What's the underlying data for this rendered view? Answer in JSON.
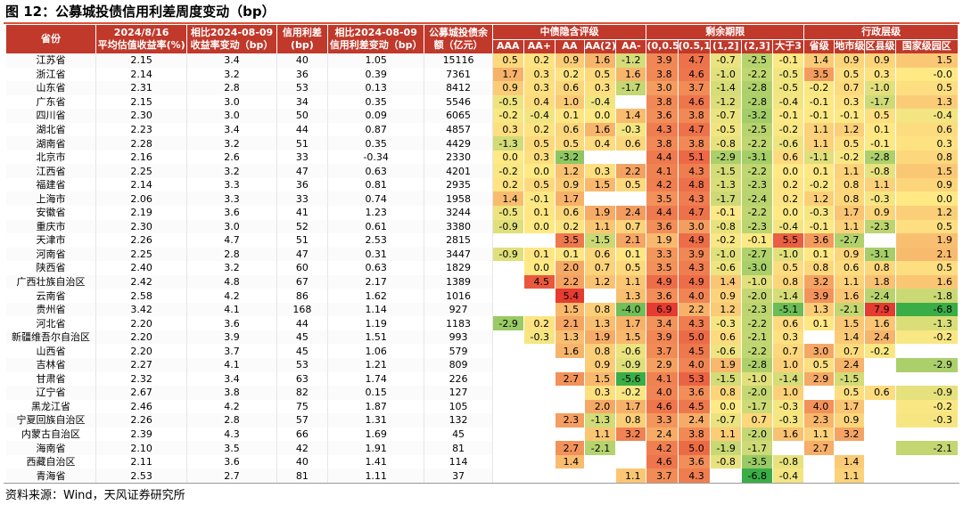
{
  "title": "图 12：公募城投债信用利差周度变动（bp）",
  "source": "资料来源：Wind，天风证券研究所",
  "headers": {
    "province": "省份",
    "yield": [
      "2024/8/16",
      "平均估值收益率(%)"
    ],
    "yield_chg": [
      "相比2024-08-09",
      "收益率变动（bp）"
    ],
    "spread": [
      "信用利差",
      "(bp)"
    ],
    "spread_chg": [
      "相比2024-08-09",
      "信用利差变动（bp）"
    ],
    "balance": [
      "公募城投债余",
      "额（亿元）"
    ],
    "group_rating": "中债隐含评级",
    "group_term": "剩余期限",
    "group_admin": "行政层级",
    "rating_cols": [
      "AAA",
      "AA+",
      "AA",
      "AA(2)",
      "AA-"
    ],
    "term_cols": [
      "(0,0.5]",
      "(0.5,1]",
      "(1,2]",
      "(2,3]",
      "大于3"
    ],
    "admin_cols": [
      "省级",
      "地市级",
      "区县级",
      "国家级园区"
    ]
  },
  "rows": [
    {
      "p": "江苏省",
      "y": "2.15",
      "yc": "3.4",
      "s": "40",
      "sc": "1.05",
      "b": "15116",
      "r": [
        "0.5",
        "0.2",
        "0.9",
        "1.6",
        "-1.2"
      ],
      "t": [
        "3.9",
        "4.7",
        "-0.7",
        "-2.5",
        "-0.1"
      ],
      "a": [
        "1.4",
        "0.9",
        "0.9",
        "1.5"
      ]
    },
    {
      "p": "浙江省",
      "y": "2.14",
      "yc": "3.2",
      "s": "36",
      "sc": "0.39",
      "b": "7361",
      "r": [
        "1.7",
        "0.3",
        "0.2",
        "0.5",
        "1.6"
      ],
      "t": [
        "3.8",
        "4.6",
        "-1.0",
        "-2.2",
        "-0.5"
      ],
      "a": [
        "3.5",
        "0.5",
        "0.3",
        "-0.0"
      ]
    },
    {
      "p": "山东省",
      "y": "2.31",
      "yc": "2.8",
      "s": "53",
      "sc": "0.13",
      "b": "8412",
      "r": [
        "0.9",
        "0.3",
        "0.6",
        "0.3",
        "-1.7"
      ],
      "t": [
        "3.0",
        "3.7",
        "-1.4",
        "-2.8",
        "-0.5"
      ],
      "a": [
        "-0.2",
        "0.7",
        "-1.0",
        "0.5"
      ]
    },
    {
      "p": "广东省",
      "y": "2.15",
      "yc": "3.0",
      "s": "34",
      "sc": "0.35",
      "b": "5546",
      "r": [
        "-0.5",
        "0.4",
        "1.0",
        "-0.4",
        ""
      ],
      "t": [
        "3.8",
        "4.6",
        "-1.2",
        "-2.8",
        "-0.4"
      ],
      "a": [
        "-0.1",
        "0.3",
        "-1.7",
        "1.3"
      ]
    },
    {
      "p": "四川省",
      "y": "2.30",
      "yc": "3.0",
      "s": "50",
      "sc": "0.09",
      "b": "6065",
      "r": [
        "-0.2",
        "-0.4",
        "0.1",
        "0.0",
        "1.4"
      ],
      "t": [
        "3.6",
        "3.8",
        "-0.7",
        "-3.2",
        "-0.1"
      ],
      "a": [
        "-0.1",
        "-0.1",
        "0.5",
        "-0.4"
      ]
    },
    {
      "p": "湖北省",
      "y": "2.23",
      "yc": "3.4",
      "s": "44",
      "sc": "0.87",
      "b": "4857",
      "r": [
        "0.3",
        "0.2",
        "0.6",
        "1.6",
        "-0.3"
      ],
      "t": [
        "4.3",
        "4.7",
        "-0.5",
        "-2.5",
        "-0.2"
      ],
      "a": [
        "1.1",
        "1.2",
        "0.1",
        "0.6"
      ]
    },
    {
      "p": "湖南省",
      "y": "2.28",
      "yc": "3.2",
      "s": "51",
      "sc": "0.35",
      "b": "4429",
      "r": [
        "-1.3",
        "0.5",
        "0.5",
        "0.4",
        "0.6"
      ],
      "t": [
        "3.8",
        "3.8",
        "-0.8",
        "-2.2",
        "-0.6"
      ],
      "a": [
        "1.1",
        "0.5",
        "-0.1",
        "0.3"
      ]
    },
    {
      "p": "北京市",
      "y": "2.16",
      "yc": "2.6",
      "s": "33",
      "sc": "-0.34",
      "b": "2330",
      "r": [
        "0.0",
        "0.3",
        "-3.2",
        "",
        ""
      ],
      "t": [
        "4.4",
        "5.1",
        "-2.9",
        "-3.1",
        "0.6"
      ],
      "a": [
        "-1.1",
        "-0.2",
        "-2.8",
        "0.8"
      ]
    },
    {
      "p": "江西省",
      "y": "2.25",
      "yc": "3.2",
      "s": "47",
      "sc": "0.63",
      "b": "4201",
      "r": [
        "-0.2",
        "0.0",
        "1.2",
        "0.3",
        "2.2"
      ],
      "t": [
        "4.1",
        "4.3",
        "-1.5",
        "-2.2",
        "0.0"
      ],
      "a": [
        "0.1",
        "1.1",
        "-0.8",
        "1.5"
      ]
    },
    {
      "p": "福建省",
      "y": "2.14",
      "yc": "3.3",
      "s": "36",
      "sc": "0.81",
      "b": "2935",
      "r": [
        "0.2",
        "0.5",
        "0.9",
        "1.5",
        "0.5"
      ],
      "t": [
        "4.2",
        "4.8",
        "-1.3",
        "-2.3",
        "0.2"
      ],
      "a": [
        "-0.2",
        "0.8",
        "1.1",
        "0.9"
      ]
    },
    {
      "p": "上海市",
      "y": "2.06",
      "yc": "3.3",
      "s": "33",
      "sc": "0.74",
      "b": "1958",
      "r": [
        "1.4",
        "-0.1",
        "1.7",
        "",
        ""
      ],
      "t": [
        "3.5",
        "4.3",
        "-1.7",
        "-2.4",
        "0.2"
      ],
      "a": [
        "1.2",
        "0.8",
        "-0.3",
        "0.0"
      ]
    },
    {
      "p": "安徽省",
      "y": "2.19",
      "yc": "3.6",
      "s": "41",
      "sc": "1.23",
      "b": "3244",
      "r": [
        "-0.5",
        "0.1",
        "0.6",
        "1.9",
        "2.4"
      ],
      "t": [
        "4.4",
        "4.7",
        "-0.1",
        "-2.2",
        "0.0"
      ],
      "a": [
        "-0.3",
        "1.7",
        "0.9",
        "1.2"
      ]
    },
    {
      "p": "重庆市",
      "y": "2.30",
      "yc": "3.0",
      "s": "52",
      "sc": "0.61",
      "b": "3380",
      "r": [
        "-0.9",
        "0.0",
        "0.2",
        "1.1",
        "0.7"
      ],
      "t": [
        "3.6",
        "3.0",
        "-0.8",
        "-2.3",
        "-0.4"
      ],
      "a": [
        "-0.1",
        "1.1",
        "-2.3",
        "0.5"
      ]
    },
    {
      "p": "天津市",
      "y": "2.26",
      "yc": "4.7",
      "s": "51",
      "sc": "2.53",
      "b": "2815",
      "r": [
        "",
        "",
        "3.5",
        "-1.5",
        "2.1"
      ],
      "t": [
        "1.9",
        "4.9",
        "-0.2",
        "-0.1",
        "5.5"
      ],
      "a": [
        "3.6",
        "-2.7",
        "",
        "1.9"
      ]
    },
    {
      "p": "河南省",
      "y": "2.25",
      "yc": "2.8",
      "s": "47",
      "sc": "0.31",
      "b": "3447",
      "r": [
        "-0.9",
        "0.1",
        "0.1",
        "0.6",
        "0.1"
      ],
      "t": [
        "3.3",
        "3.9",
        "-1.0",
        "-2.7",
        "-1.0"
      ],
      "a": [
        "0.1",
        "0.9",
        "-3.1",
        "2.1"
      ]
    },
    {
      "p": "陕西省",
      "y": "2.40",
      "yc": "3.2",
      "s": "60",
      "sc": "0.63",
      "b": "1829",
      "r": [
        "",
        "0.0",
        "2.0",
        "0.7",
        "0.5"
      ],
      "t": [
        "3.5",
        "4.3",
        "-0.6",
        "-3.0",
        "0.5"
      ],
      "a": [
        "0.8",
        "0.6",
        "0.8",
        "0.5"
      ]
    },
    {
      "p": "广西壮族自治区",
      "y": "2.42",
      "yc": "4.8",
      "s": "67",
      "sc": "2.17",
      "b": "1389",
      "r": [
        "",
        "4.5",
        "2.2",
        "1.2",
        "1.1"
      ],
      "t": [
        "4.9",
        "4.9",
        "1.4",
        "-1.0",
        "0.8"
      ],
      "a": [
        "3.2",
        "1.1",
        "1.8",
        "1.6"
      ]
    },
    {
      "p": "云南省",
      "y": "2.58",
      "yc": "4.2",
      "s": "86",
      "sc": "1.62",
      "b": "1016",
      "r": [
        "",
        "",
        "5.4",
        "",
        "1.3"
      ],
      "t": [
        "3.6",
        "4.0",
        "0.9",
        "-2.0",
        "-1.4"
      ],
      "a": [
        "3.9",
        "1.6",
        "-2.4",
        "-1.8"
      ]
    },
    {
      "p": "贵州省",
      "y": "3.42",
      "yc": "4.1",
      "s": "168",
      "sc": "1.14",
      "b": "927",
      "r": [
        "",
        "",
        "1.5",
        "0.8",
        "-4.0"
      ],
      "t": [
        "6.9",
        "2.2",
        "1.2",
        "-2.3",
        "-5.1"
      ],
      "a": [
        "1.3",
        "-2.1",
        "7.9",
        "-6.8"
      ]
    },
    {
      "p": "河北省",
      "y": "2.20",
      "yc": "3.6",
      "s": "44",
      "sc": "1.19",
      "b": "1183",
      "r": [
        "-2.9",
        "0.2",
        "2.1",
        "1.3",
        "1.7"
      ],
      "t": [
        "3.4",
        "4.3",
        "-0.3",
        "-2.2",
        "0.6"
      ],
      "a": [
        "0.1",
        "1.5",
        "1.6",
        "-1.3"
      ]
    },
    {
      "p": "新疆维吾尔自治区",
      "y": "2.20",
      "yc": "3.9",
      "s": "45",
      "sc": "1.51",
      "b": "993",
      "r": [
        "",
        "-0.3",
        "1.3",
        "1.9",
        "1.5"
      ],
      "t": [
        "3.9",
        "5.0",
        "0.6",
        "-2.1",
        "0.3"
      ],
      "a": [
        "",
        "1.4",
        "2.4",
        "-0.2"
      ]
    },
    {
      "p": "山西省",
      "y": "2.20",
      "yc": "3.7",
      "s": "45",
      "sc": "1.06",
      "b": "579",
      "r": [
        "",
        "",
        "1.6",
        "0.8",
        "-0.6"
      ],
      "t": [
        "3.7",
        "4.5",
        "-0.6",
        "-2.2",
        "0.7"
      ],
      "a": [
        "3.0",
        "0.7",
        "-0.2",
        ""
      ]
    },
    {
      "p": "吉林省",
      "y": "2.27",
      "yc": "4.1",
      "s": "53",
      "sc": "1.21",
      "b": "809",
      "r": [
        "",
        "",
        "",
        "0.9",
        "-0.9"
      ],
      "t": [
        "2.9",
        "4.0",
        "1.9",
        "-2.8",
        "1.0"
      ],
      "a": [
        "0.5",
        "2.4",
        "",
        "-2.9"
      ]
    },
    {
      "p": "甘肃省",
      "y": "2.32",
      "yc": "3.4",
      "s": "63",
      "sc": "1.74",
      "b": "226",
      "r": [
        "",
        "",
        "2.7",
        "1.5",
        "-5.6"
      ],
      "t": [
        "4.1",
        "5.3",
        "-1.5",
        "-1.0",
        "-1.4"
      ],
      "a": [
        "2.9",
        "-1.5",
        "",
        ""
      ]
    },
    {
      "p": "辽宁省",
      "y": "2.67",
      "yc": "3.8",
      "s": "82",
      "sc": "0.15",
      "b": "127",
      "r": [
        "",
        "",
        "",
        "0.3",
        "-0.2"
      ],
      "t": [
        "4.0",
        "3.6",
        "0.8",
        "-2.0",
        "1.0"
      ],
      "a": [
        "",
        "0.5",
        "0.6",
        "-0.9"
      ]
    },
    {
      "p": "黑龙江省",
      "y": "2.46",
      "yc": "4.2",
      "s": "75",
      "sc": "1.87",
      "b": "105",
      "r": [
        "",
        "",
        "",
        "2.0",
        "1.7"
      ],
      "t": [
        "4.6",
        "4.5",
        "0.0",
        "-1.7",
        "-0.3"
      ],
      "a": [
        "4.0",
        "1.7",
        "",
        "-0.2"
      ]
    },
    {
      "p": "宁夏回族自治区",
      "y": "2.26",
      "yc": "2.8",
      "s": "57",
      "sc": "1.31",
      "b": "132",
      "r": [
        "",
        "",
        "2.3",
        "-1.3",
        "0.8"
      ],
      "t": [
        "3.3",
        "2.4",
        "-0.7",
        "0.7",
        "-0.3"
      ],
      "a": [
        "2.3",
        "0.9",
        "",
        "-0.3"
      ]
    },
    {
      "p": "内蒙古自治区",
      "y": "2.39",
      "yc": "4.3",
      "s": "66",
      "sc": "1.69",
      "b": "45",
      "r": [
        "",
        "",
        "",
        "1.1",
        "3.2"
      ],
      "t": [
        "2.4",
        "3.8",
        "1.1",
        "-2.0",
        "1.6"
      ],
      "a": [
        "1.1",
        "3.2",
        "",
        ""
      ]
    },
    {
      "p": "海南省",
      "y": "2.10",
      "yc": "3.5",
      "s": "42",
      "sc": "1.91",
      "b": "81",
      "r": [
        "",
        "",
        "2.7",
        "-2.1",
        ""
      ],
      "t": [
        "4.2",
        "5.0",
        "-1.9",
        "-1.7",
        ""
      ],
      "a": [
        "2.7",
        "",
        "",
        "-2.1"
      ]
    },
    {
      "p": "西藏自治区",
      "y": "2.11",
      "yc": "3.6",
      "s": "40",
      "sc": "1.41",
      "b": "114",
      "r": [
        "",
        "",
        "1.4",
        "",
        ""
      ],
      "t": [
        "4.6",
        "3.6",
        "-0.8",
        "-3.5",
        "-0.8"
      ],
      "a": [
        "",
        "1.4",
        "",
        ""
      ]
    },
    {
      "p": "青海省",
      "y": "2.53",
      "yc": "2.7",
      "s": "81",
      "sc": "1.11",
      "b": "37",
      "r": [
        "",
        "",
        "",
        "",
        "1.1"
      ],
      "t": [
        "3.7",
        "4.3",
        "",
        "-6.8",
        "-0.4"
      ],
      "a": [
        "",
        "1.1",
        "",
        ""
      ]
    }
  ],
  "colors": {
    "header_bg": "#c0392b",
    "high": "#e53b30",
    "mid": "#ffe985",
    "low": "#3aad47"
  }
}
